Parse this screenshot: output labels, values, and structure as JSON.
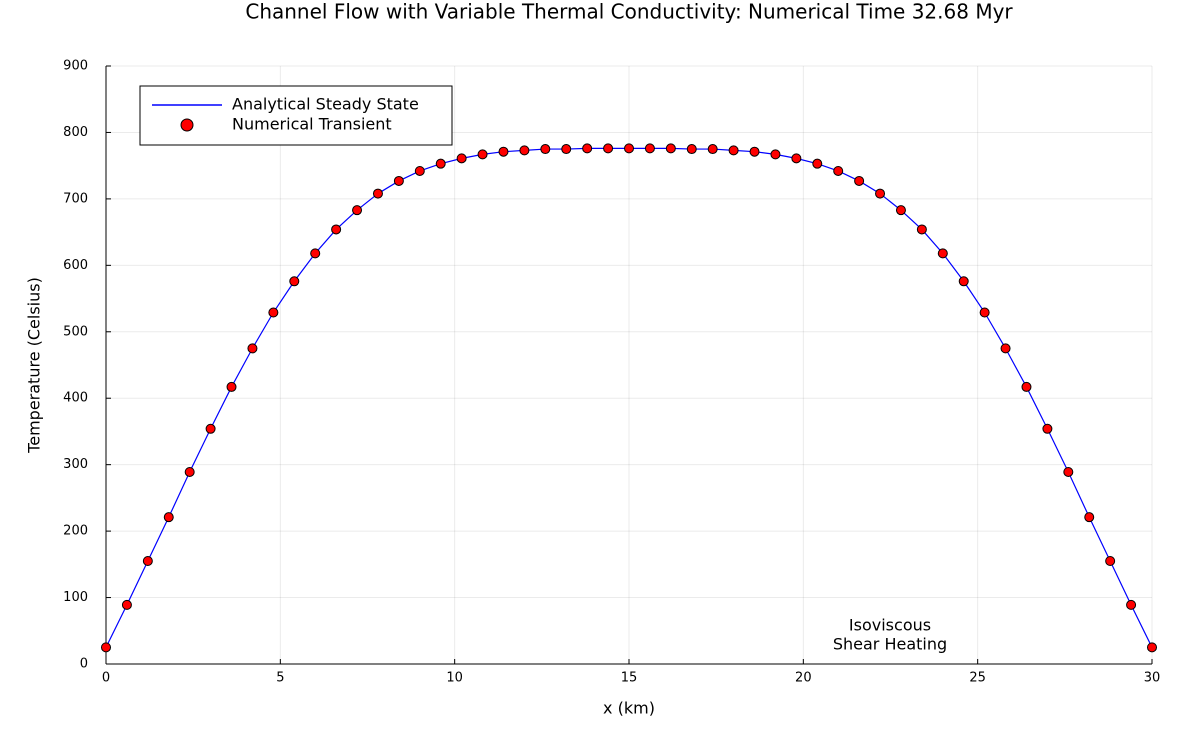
{
  "chart_data": {
    "type": "line",
    "title": "Channel Flow with Variable Thermal Conductivity: Numerical Time 32.68 Myr",
    "x_label": "x (km)",
    "y_label": "Temperature (Celsius)",
    "x": [
      0,
      0.6,
      1.2,
      1.8,
      2.4,
      3.0,
      3.6,
      4.2,
      4.8,
      5.4,
      6.0,
      6.6,
      7.2,
      7.8,
      8.4,
      9.0,
      9.6,
      10.2,
      10.8,
      11.4,
      12.0,
      12.6,
      13.2,
      13.8,
      14.4,
      15.0,
      15.6,
      16.2,
      16.8,
      17.4,
      18.0,
      18.6,
      19.2,
      19.8,
      20.4,
      21.0,
      21.6,
      22.2,
      22.8,
      23.4,
      24.0,
      24.6,
      25.2,
      25.8,
      26.4,
      27.0,
      27.6,
      28.2,
      28.8,
      29.4,
      30.0
    ],
    "series": [
      {
        "name": "Analytical Steady State",
        "color": "#0000ff",
        "style": "line",
        "values": [
          25,
          89,
          155,
          221,
          289,
          354,
          417,
          475,
          529,
          576,
          618,
          654,
          683,
          708,
          727,
          742,
          753,
          761,
          767,
          771,
          773,
          775,
          775,
          776,
          776,
          776,
          776,
          776,
          775,
          775,
          773,
          771,
          767,
          761,
          753,
          742,
          727,
          708,
          683,
          654,
          618,
          576,
          529,
          475,
          417,
          354,
          289,
          221,
          155,
          89,
          25
        ]
      },
      {
        "name": "Numerical Transient",
        "color": "#ff0000",
        "style": "marker",
        "values": [
          25,
          89,
          155,
          221,
          289,
          354,
          417,
          475,
          529,
          576,
          618,
          654,
          683,
          708,
          727,
          742,
          753,
          761,
          767,
          771,
          773,
          775,
          775,
          776,
          776,
          776,
          776,
          776,
          775,
          775,
          773,
          771,
          767,
          761,
          753,
          742,
          727,
          708,
          683,
          654,
          618,
          576,
          529,
          475,
          417,
          354,
          289,
          221,
          155,
          89,
          25
        ]
      }
    ],
    "annotation": [
      "Isoviscous",
      "Shear Heating"
    ],
    "xlim": [
      0,
      30
    ],
    "ylim": [
      0,
      900
    ],
    "xticks": [
      0,
      5,
      10,
      15,
      20,
      25,
      30
    ],
    "yticks": [
      0,
      100,
      200,
      300,
      400,
      500,
      600,
      700,
      800,
      900
    ],
    "grid": true,
    "legend": "top-left"
  }
}
